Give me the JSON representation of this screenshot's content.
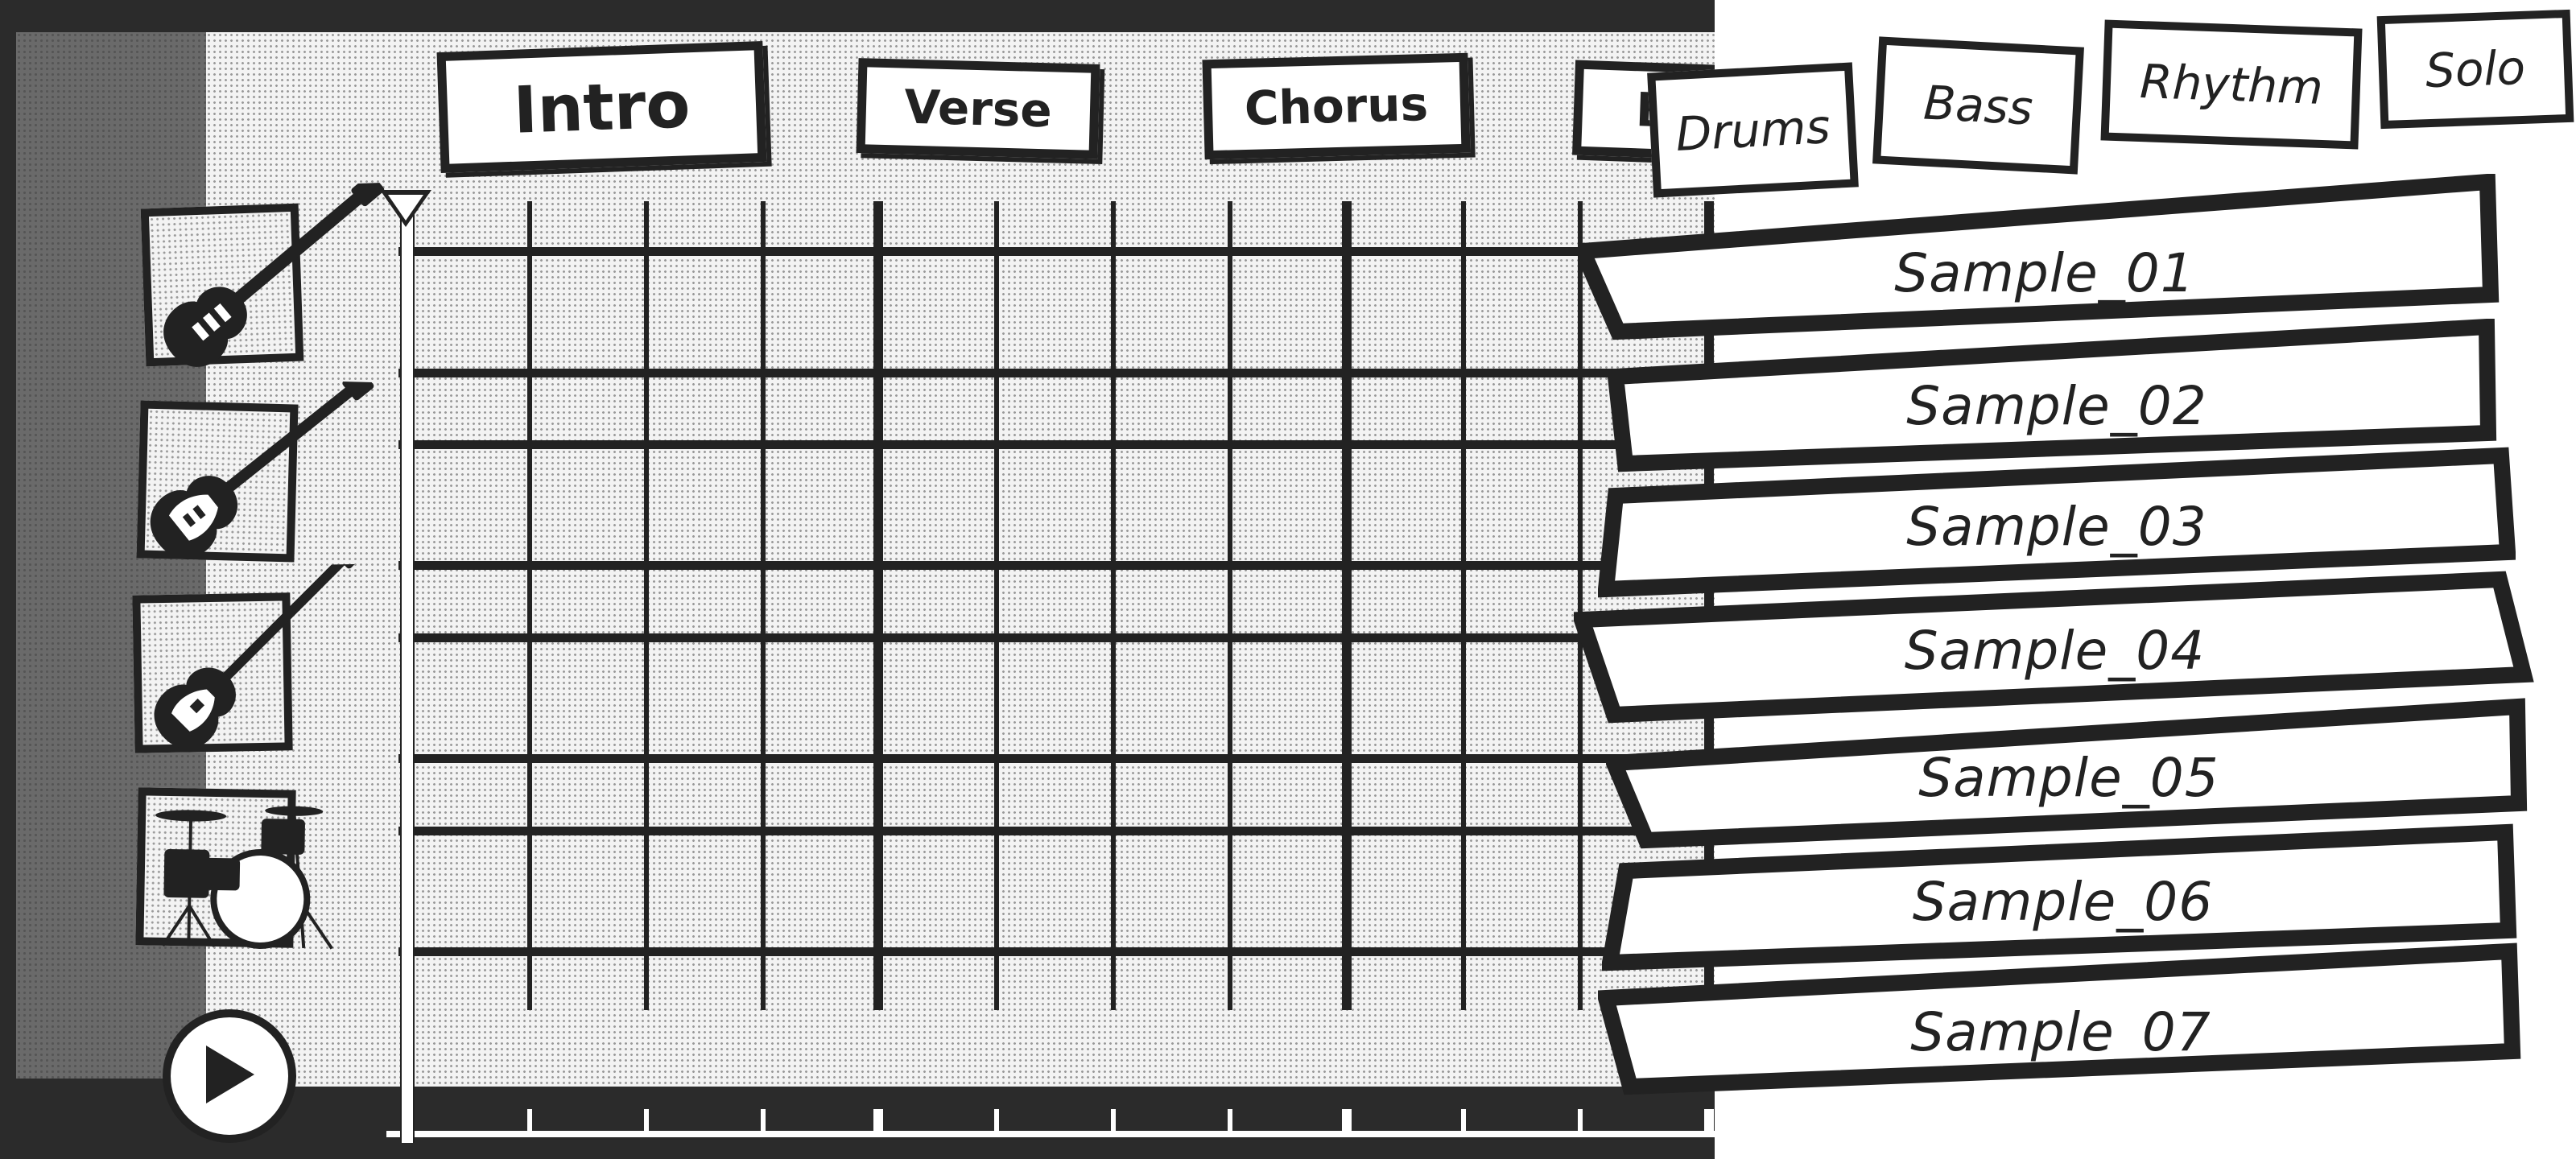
{
  "sections": [
    {
      "label": "Intro"
    },
    {
      "label": "Verse"
    },
    {
      "label": "Chorus"
    },
    {
      "label": "B"
    }
  ],
  "instrument_tabs": [
    {
      "label": "Drums"
    },
    {
      "label": "Bass"
    },
    {
      "label": "Rhythm"
    },
    {
      "label": "Solo"
    }
  ],
  "samples": [
    {
      "label": "Sample_01"
    },
    {
      "label": "Sample_02"
    },
    {
      "label": "Sample_03"
    },
    {
      "label": "Sample_04"
    },
    {
      "label": "Sample_05"
    },
    {
      "label": "Sample_06"
    },
    {
      "label": "Sample_07"
    }
  ],
  "tracks": [
    {
      "icon": "electric-guitar-solo-icon"
    },
    {
      "icon": "electric-guitar-rhythm-icon"
    },
    {
      "icon": "bass-guitar-icon"
    },
    {
      "icon": "drum-kit-icon"
    }
  ],
  "transport": {
    "play_icon": "play-icon"
  },
  "colors": {
    "ink": "#222222",
    "paper": "#f3f3f3",
    "dark": "#2b2b2b",
    "strip": "#6a6a6a"
  }
}
